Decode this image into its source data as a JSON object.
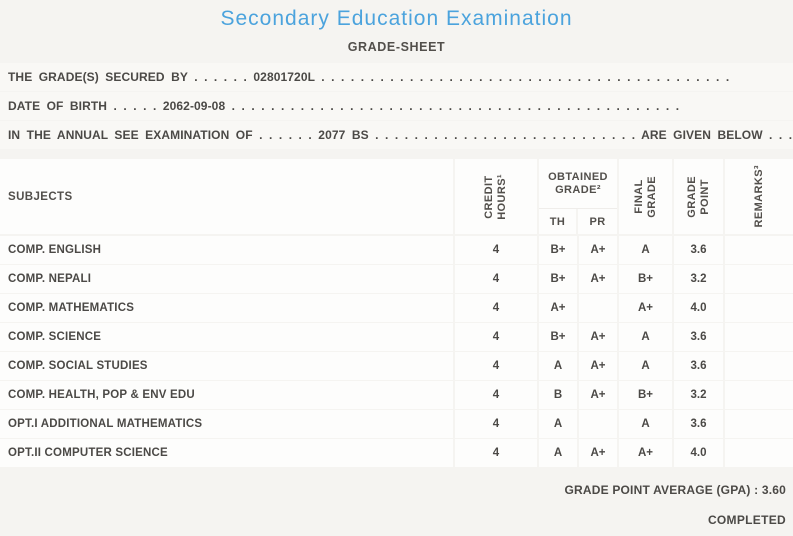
{
  "header": {
    "title": "Secondary Education Examination",
    "subtitle": "GRADE-SHEET"
  },
  "info": {
    "line1": "THE GRADE(S) SECURED BY . . . . . . 02801720L . . . . . . . . . . . . . . . . . . . . . . . . . . . . . . . . . . . . . . . . . .",
    "line2": "DATE OF BIRTH . . . . . 2062-09-08 . . . . . . . . . . . . . . . . . . . . . . . . . . . . . . . . . . . . . . . . . . . . . .",
    "line3": "IN THE ANNUAL SEE EXAMINATION OF . . . . . . 2077 BS . . . . . . . . . . . . . . . . . . . . . . . . . . . ARE GIVEN BELOW . . ."
  },
  "table": {
    "columns": {
      "subjects": "SUBJECTS",
      "credit_hours": [
        "CREDIT",
        "HOURS¹"
      ],
      "obtained_grade": [
        "OBTAINED",
        "GRADE²"
      ],
      "th": "TH",
      "pr": "PR",
      "final_grade": [
        "FINAL",
        "GRADE"
      ],
      "grade_point": [
        "GRADE",
        "POINT"
      ],
      "remarks": "REMARKS³"
    },
    "rows": [
      {
        "subject": "COMP. ENGLISH",
        "credit": "4",
        "th": "B+",
        "pr": "A+",
        "final": "A",
        "point": "3.6",
        "remarks": ""
      },
      {
        "subject": "COMP. NEPALI",
        "credit": "4",
        "th": "B+",
        "pr": "A+",
        "final": "B+",
        "point": "3.2",
        "remarks": ""
      },
      {
        "subject": "COMP. MATHEMATICS",
        "credit": "4",
        "th": "A+",
        "pr": "",
        "final": "A+",
        "point": "4.0",
        "remarks": ""
      },
      {
        "subject": "COMP. SCIENCE",
        "credit": "4",
        "th": "B+",
        "pr": "A+",
        "final": "A",
        "point": "3.6",
        "remarks": ""
      },
      {
        "subject": "COMP. SOCIAL STUDIES",
        "credit": "4",
        "th": "A",
        "pr": "A+",
        "final": "A",
        "point": "3.6",
        "remarks": ""
      },
      {
        "subject": "COMP. HEALTH, POP & ENV EDU",
        "credit": "4",
        "th": "B",
        "pr": "A+",
        "final": "B+",
        "point": "3.2",
        "remarks": ""
      },
      {
        "subject": "OPT.I ADDITIONAL MATHEMATICS",
        "credit": "4",
        "th": "A",
        "pr": "",
        "final": "A",
        "point": "3.6",
        "remarks": ""
      },
      {
        "subject": "OPT.II COMPUTER SCIENCE",
        "credit": "4",
        "th": "A",
        "pr": "A+",
        "final": "A+",
        "point": "4.0",
        "remarks": ""
      }
    ]
  },
  "footer": {
    "gpa": "GRADE POINT AVERAGE (GPA) : 3.60",
    "status": "COMPLETED"
  },
  "colors": {
    "title_blue": "#4ba3dd",
    "text_dark": "#4b4946",
    "page_background": "#f5f4f1",
    "cell_background": "#fdfdfc"
  }
}
